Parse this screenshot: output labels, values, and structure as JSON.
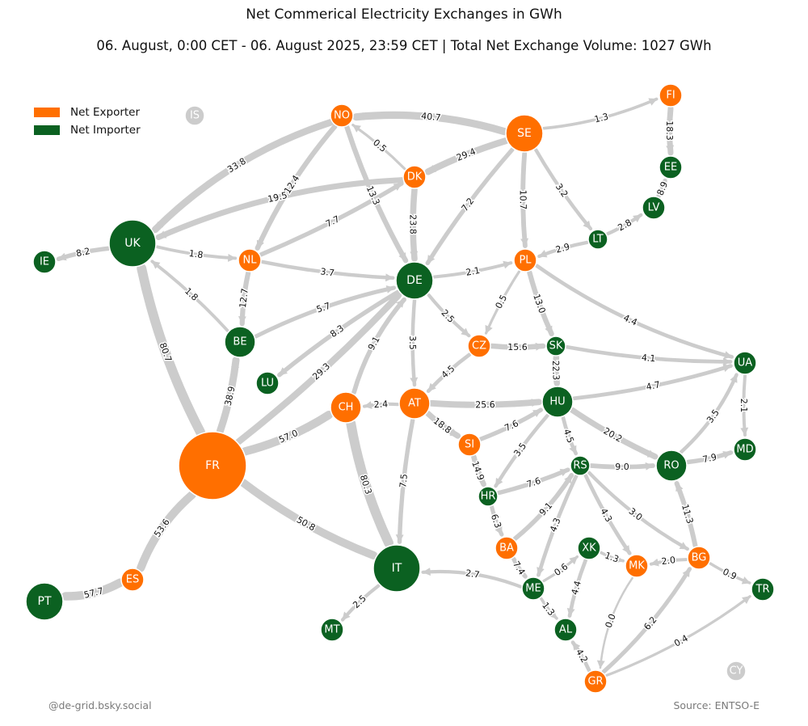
{
  "header": {
    "title": "Net Commerical Electricity Exchanges in GWh",
    "subtitle": "06. August, 0:00 CET - 06. August 2025, 23:59 CET | Total Net Exchange Volume: 1027 GWh"
  },
  "legend": {
    "exporter": {
      "label": "Net Exporter",
      "color": "#ff6f00"
    },
    "importer": {
      "label": "Net Importer",
      "color": "#0b6121"
    }
  },
  "colors": {
    "inactive": "#cccccc",
    "flow": "#cccccc",
    "label_text": "#ffffff"
  },
  "footer": {
    "credit": "@de-grid.bsky.social",
    "source": "Source: ENTSO-E"
  },
  "nodes": [
    {
      "id": "IS",
      "role": "inactive",
      "size": 1
    },
    {
      "id": "NO",
      "role": "exporter",
      "size": 2
    },
    {
      "id": "SE",
      "role": "exporter",
      "size": 4
    },
    {
      "id": "FI",
      "role": "exporter",
      "size": 2
    },
    {
      "id": "EE",
      "role": "importer",
      "size": 2
    },
    {
      "id": "LV",
      "role": "importer",
      "size": 2
    },
    {
      "id": "LT",
      "role": "importer",
      "size": 1
    },
    {
      "id": "DK",
      "role": "exporter",
      "size": 2
    },
    {
      "id": "UK",
      "role": "importer",
      "size": 5
    },
    {
      "id": "IE",
      "role": "importer",
      "size": 2
    },
    {
      "id": "NL",
      "role": "exporter",
      "size": 2
    },
    {
      "id": "DE",
      "role": "importer",
      "size": 4
    },
    {
      "id": "PL",
      "role": "exporter",
      "size": 2
    },
    {
      "id": "BE",
      "role": "importer",
      "size": 3
    },
    {
      "id": "LU",
      "role": "importer",
      "size": 2
    },
    {
      "id": "CZ",
      "role": "exporter",
      "size": 2
    },
    {
      "id": "SK",
      "role": "importer",
      "size": 1
    },
    {
      "id": "UA",
      "role": "importer",
      "size": 2
    },
    {
      "id": "CH",
      "role": "exporter",
      "size": 3
    },
    {
      "id": "AT",
      "role": "exporter",
      "size": 3
    },
    {
      "id": "HU",
      "role": "importer",
      "size": 3
    },
    {
      "id": "FR",
      "role": "exporter",
      "size": 8
    },
    {
      "id": "SI",
      "role": "exporter",
      "size": 2
    },
    {
      "id": "MD",
      "role": "importer",
      "size": 2
    },
    {
      "id": "RS",
      "role": "importer",
      "size": 1
    },
    {
      "id": "RO",
      "role": "importer",
      "size": 3
    },
    {
      "id": "HR",
      "role": "importer",
      "size": 1
    },
    {
      "id": "BA",
      "role": "exporter",
      "size": 2
    },
    {
      "id": "XK",
      "role": "importer",
      "size": 2
    },
    {
      "id": "MK",
      "role": "exporter",
      "size": 2
    },
    {
      "id": "BG",
      "role": "exporter",
      "size": 2
    },
    {
      "id": "IT",
      "role": "importer",
      "size": 5
    },
    {
      "id": "ES",
      "role": "exporter",
      "size": 2
    },
    {
      "id": "PT",
      "role": "importer",
      "size": 4
    },
    {
      "id": "ME",
      "role": "importer",
      "size": 2
    },
    {
      "id": "TR",
      "role": "importer",
      "size": 2
    },
    {
      "id": "MT",
      "role": "importer",
      "size": 2
    },
    {
      "id": "AL",
      "role": "importer",
      "size": 2
    },
    {
      "id": "GR",
      "role": "exporter",
      "size": 2
    },
    {
      "id": "CY",
      "role": "inactive",
      "size": 1
    }
  ],
  "flows": [
    {
      "from": "SE",
      "to": "NO",
      "value": "40.7"
    },
    {
      "from": "SE",
      "to": "FI",
      "value": "1.3"
    },
    {
      "from": "FI",
      "to": "EE",
      "value": "18.3"
    },
    {
      "from": "LV",
      "to": "EE",
      "value": "8.9"
    },
    {
      "from": "LT",
      "to": "LV",
      "value": "2.8"
    },
    {
      "from": "LT",
      "to": "PL",
      "value": "2.9"
    },
    {
      "from": "SE",
      "to": "DK",
      "value": "29.4"
    },
    {
      "from": "SE",
      "to": "DE",
      "value": "7.2"
    },
    {
      "from": "SE",
      "to": "PL",
      "value": "10.7"
    },
    {
      "from": "SE",
      "to": "LT",
      "value": "3.2"
    },
    {
      "from": "DK",
      "to": "NO",
      "value": "0.5"
    },
    {
      "from": "NO",
      "to": "UK",
      "value": "33.8"
    },
    {
      "from": "NO",
      "to": "NL",
      "value": "12.4"
    },
    {
      "from": "NO",
      "to": "DE",
      "value": "13.3"
    },
    {
      "from": "DK",
      "to": "UK",
      "value": "19.5"
    },
    {
      "from": "NL",
      "to": "DK",
      "value": "7.7"
    },
    {
      "from": "DK",
      "to": "DE",
      "value": "23.8"
    },
    {
      "from": "UK",
      "to": "IE",
      "value": "8.2"
    },
    {
      "from": "UK",
      "to": "NL",
      "value": "1.8"
    },
    {
      "from": "NL",
      "to": "DE",
      "value": "3.7"
    },
    {
      "from": "DE",
      "to": "PL",
      "value": "2.1"
    },
    {
      "from": "BE",
      "to": "UK",
      "value": "1.8"
    },
    {
      "from": "NL",
      "to": "BE",
      "value": "12.7"
    },
    {
      "from": "BE",
      "to": "DE",
      "value": "5.7"
    },
    {
      "from": "DE",
      "to": "LU",
      "value": "8.3"
    },
    {
      "from": "FR",
      "to": "UK",
      "value": "80.7"
    },
    {
      "from": "FR",
      "to": "BE",
      "value": "38.9"
    },
    {
      "from": "FR",
      "to": "DE",
      "value": "29.3"
    },
    {
      "from": "CH",
      "to": "DE",
      "value": "9.1"
    },
    {
      "from": "DE",
      "to": "AT",
      "value": "3.5"
    },
    {
      "from": "DE",
      "to": "CZ",
      "value": "2.5"
    },
    {
      "from": "PL",
      "to": "CZ",
      "value": "0.5"
    },
    {
      "from": "PL",
      "to": "SK",
      "value": "13.0"
    },
    {
      "from": "PL",
      "to": "UA",
      "value": "4.4"
    },
    {
      "from": "CZ",
      "to": "SK",
      "value": "15.6"
    },
    {
      "from": "CZ",
      "to": "AT",
      "value": "4.5"
    },
    {
      "from": "SK",
      "to": "UA",
      "value": "4.1"
    },
    {
      "from": "SK",
      "to": "HU",
      "value": "22.3"
    },
    {
      "from": "AT",
      "to": "CH",
      "value": "2.4"
    },
    {
      "from": "AT",
      "to": "HU",
      "value": "25.6"
    },
    {
      "from": "HU",
      "to": "UA",
      "value": "4.7"
    },
    {
      "from": "RO",
      "to": "UA",
      "value": "3.5"
    },
    {
      "from": "UA",
      "to": "MD",
      "value": "2.1"
    },
    {
      "from": "FR",
      "to": "CH",
      "value": "57.0"
    },
    {
      "from": "AT",
      "to": "SI",
      "value": "18.8"
    },
    {
      "from": "SI",
      "to": "HU",
      "value": "7.6"
    },
    {
      "from": "HU",
      "to": "HR",
      "value": "3.5"
    },
    {
      "from": "HU",
      "to": "RS",
      "value": "4.5"
    },
    {
      "from": "HU",
      "to": "RO",
      "value": "20.2"
    },
    {
      "from": "RS",
      "to": "RO",
      "value": "9.0"
    },
    {
      "from": "RO",
      "to": "MD",
      "value": "7.9"
    },
    {
      "from": "FR",
      "to": "ES",
      "value": "53.6"
    },
    {
      "from": "FR",
      "to": "IT",
      "value": "50.8"
    },
    {
      "from": "CH",
      "to": "IT",
      "value": "80.3"
    },
    {
      "from": "AT",
      "to": "IT",
      "value": "7.5"
    },
    {
      "from": "SI",
      "to": "HR",
      "value": "14.9"
    },
    {
      "from": "HR",
      "to": "RS",
      "value": "7.6"
    },
    {
      "from": "HR",
      "to": "BA",
      "value": "6.3"
    },
    {
      "from": "BA",
      "to": "RS",
      "value": "9.1"
    },
    {
      "from": "RS",
      "to": "ME",
      "value": "4.3"
    },
    {
      "from": "RS",
      "to": "MK",
      "value": "4.3"
    },
    {
      "from": "RS",
      "to": "BG",
      "value": "3.0"
    },
    {
      "from": "BG",
      "to": "RO",
      "value": "11.3"
    },
    {
      "from": "BA",
      "to": "ME",
      "value": "7.4"
    },
    {
      "from": "ME",
      "to": "XK",
      "value": "0.6"
    },
    {
      "from": "XK",
      "to": "MK",
      "value": "1.3"
    },
    {
      "from": "BG",
      "to": "MK",
      "value": "2.0"
    },
    {
      "from": "BG",
      "to": "TR",
      "value": "0.9"
    },
    {
      "from": "ES",
      "to": "PT",
      "value": "57.7"
    },
    {
      "from": "ME",
      "to": "IT",
      "value": "2.7"
    },
    {
      "from": "IT",
      "to": "MT",
      "value": "2.5"
    },
    {
      "from": "XK",
      "to": "AL",
      "value": "4.4"
    },
    {
      "from": "ME",
      "to": "AL",
      "value": "1.3"
    },
    {
      "from": "GR",
      "to": "AL",
      "value": "4.2"
    },
    {
      "from": "MK",
      "to": "GR",
      "value": "0.0"
    },
    {
      "from": "GR",
      "to": "BG",
      "value": "6.2"
    },
    {
      "from": "GR",
      "to": "TR",
      "value": "0.4"
    }
  ]
}
